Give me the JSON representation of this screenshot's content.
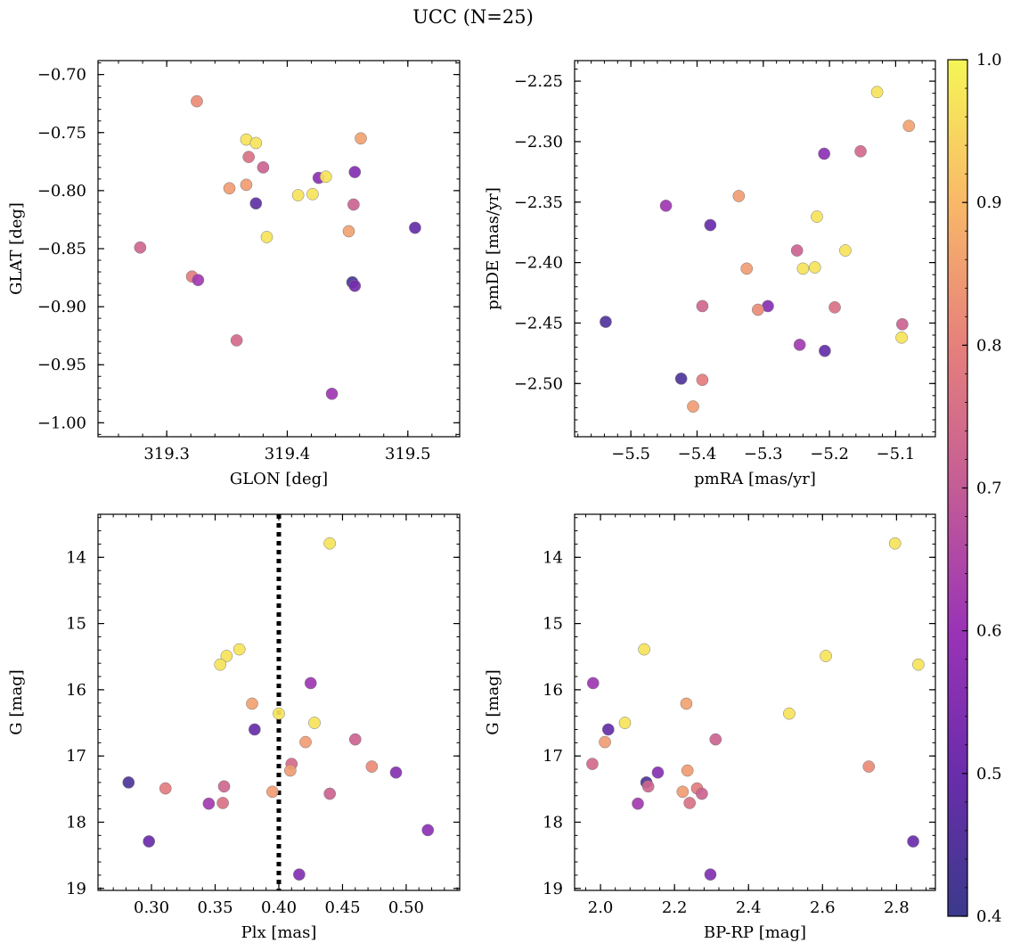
{
  "title": "UCC (N=25)",
  "colorbar": {
    "range": [
      0.4,
      1.0
    ],
    "ticks": [
      0.4,
      0.5,
      0.6,
      0.7,
      0.8,
      0.9,
      1.0
    ],
    "tick_labels": [
      "0.4",
      "0.5",
      "0.6",
      "0.7",
      "0.8",
      "0.9",
      "1.0"
    ],
    "colormap": "plasma"
  },
  "chart_data": [
    {
      "type": "scatter",
      "xlabel": "GLON [deg]",
      "ylabel": "GLAT [deg]",
      "xlim": [
        319.243,
        319.543
      ],
      "ylim": [
        -1.012,
        -0.688
      ],
      "y_inverted": false,
      "xticks": [
        319.3,
        319.4,
        319.5
      ],
      "xtick_labels": [
        "319.3",
        "319.4",
        "319.5"
      ],
      "yticks": [
        -1.0,
        -0.95,
        -0.9,
        -0.85,
        -0.8,
        -0.75,
        -0.7
      ],
      "ytick_labels": [
        "−1.00",
        "−0.95",
        "−0.90",
        "−0.85",
        "−0.80",
        "−0.75",
        "−0.70"
      ],
      "points": [
        {
          "x": 319.325,
          "y": -0.723,
          "c": 0.82
        },
        {
          "x": 319.366,
          "y": -0.756,
          "c": 0.97
        },
        {
          "x": 319.374,
          "y": -0.759,
          "c": 0.97
        },
        {
          "x": 319.461,
          "y": -0.755,
          "c": 0.86
        },
        {
          "x": 319.368,
          "y": -0.771,
          "c": 0.76
        },
        {
          "x": 319.38,
          "y": -0.78,
          "c": 0.72
        },
        {
          "x": 319.426,
          "y": -0.789,
          "c": 0.57
        },
        {
          "x": 319.432,
          "y": -0.788,
          "c": 0.97
        },
        {
          "x": 319.456,
          "y": -0.784,
          "c": 0.55
        },
        {
          "x": 319.352,
          "y": -0.798,
          "c": 0.85
        },
        {
          "x": 319.366,
          "y": -0.795,
          "c": 0.85
        },
        {
          "x": 319.409,
          "y": -0.804,
          "c": 0.97
        },
        {
          "x": 319.421,
          "y": -0.803,
          "c": 0.97
        },
        {
          "x": 319.374,
          "y": -0.811,
          "c": 0.47
        },
        {
          "x": 319.455,
          "y": -0.812,
          "c": 0.72
        },
        {
          "x": 319.383,
          "y": -0.84,
          "c": 0.97
        },
        {
          "x": 319.451,
          "y": -0.835,
          "c": 0.86
        },
        {
          "x": 319.506,
          "y": -0.832,
          "c": 0.49
        },
        {
          "x": 319.278,
          "y": -0.849,
          "c": 0.73
        },
        {
          "x": 319.321,
          "y": -0.874,
          "c": 0.79
        },
        {
          "x": 319.326,
          "y": -0.877,
          "c": 0.62
        },
        {
          "x": 319.454,
          "y": -0.879,
          "c": 0.43
        },
        {
          "x": 319.456,
          "y": -0.882,
          "c": 0.52
        },
        {
          "x": 319.358,
          "y": -0.929,
          "c": 0.74
        },
        {
          "x": 319.437,
          "y": -0.975,
          "c": 0.61
        }
      ]
    },
    {
      "type": "scatter",
      "xlabel": "pmRA [mas/yr]",
      "ylabel": "pmDE [mas/yr]",
      "xlim": [
        -5.585,
        -5.04
      ],
      "ylim": [
        -2.544,
        -2.233
      ],
      "y_inverted": false,
      "xticks": [
        -5.5,
        -5.4,
        -5.3,
        -5.2,
        -5.1
      ],
      "xtick_labels": [
        "−5.5",
        "−5.4",
        "−5.3",
        "−5.2",
        "−5.1"
      ],
      "yticks": [
        -2.5,
        -2.45,
        -2.4,
        -2.35,
        -2.3,
        -2.25
      ],
      "ytick_labels": [
        "−2.50",
        "−2.45",
        "−2.40",
        "−2.35",
        "−2.30",
        "−2.25"
      ],
      "points": [
        {
          "x": -5.128,
          "y": -2.259,
          "c": 0.97
        },
        {
          "x": -5.08,
          "y": -2.287,
          "c": 0.86
        },
        {
          "x": -5.153,
          "y": -2.308,
          "c": 0.74
        },
        {
          "x": -5.208,
          "y": -2.31,
          "c": 0.57
        },
        {
          "x": -5.337,
          "y": -2.345,
          "c": 0.85
        },
        {
          "x": -5.447,
          "y": -2.353,
          "c": 0.61
        },
        {
          "x": -5.219,
          "y": -2.362,
          "c": 0.97
        },
        {
          "x": -5.38,
          "y": -2.369,
          "c": 0.5
        },
        {
          "x": -5.249,
          "y": -2.39,
          "c": 0.72
        },
        {
          "x": -5.176,
          "y": -2.39,
          "c": 0.97
        },
        {
          "x": -5.325,
          "y": -2.405,
          "c": 0.85
        },
        {
          "x": -5.24,
          "y": -2.405,
          "c": 0.97
        },
        {
          "x": -5.222,
          "y": -2.404,
          "c": 0.97
        },
        {
          "x": -5.392,
          "y": -2.436,
          "c": 0.73
        },
        {
          "x": -5.293,
          "y": -2.436,
          "c": 0.56
        },
        {
          "x": -5.308,
          "y": -2.439,
          "c": 0.82
        },
        {
          "x": -5.192,
          "y": -2.437,
          "c": 0.76
        },
        {
          "x": -5.538,
          "y": -2.449,
          "c": 0.45
        },
        {
          "x": -5.09,
          "y": -2.451,
          "c": 0.72
        },
        {
          "x": -5.091,
          "y": -2.462,
          "c": 0.97
        },
        {
          "x": -5.245,
          "y": -2.468,
          "c": 0.62
        },
        {
          "x": -5.207,
          "y": -2.473,
          "c": 0.49
        },
        {
          "x": -5.424,
          "y": -2.496,
          "c": 0.44
        },
        {
          "x": -5.392,
          "y": -2.497,
          "c": 0.79
        },
        {
          "x": -5.406,
          "y": -2.519,
          "c": 0.85
        }
      ]
    },
    {
      "type": "scatter",
      "xlabel": "Plx [mas]",
      "ylabel": "G [mag]",
      "xlim": [
        0.258,
        0.542
      ],
      "ylim": [
        19.03,
        13.35
      ],
      "y_inverted": true,
      "xticks": [
        0.3,
        0.35,
        0.4,
        0.45,
        0.5
      ],
      "xtick_labels": [
        "0.30",
        "0.35",
        "0.40",
        "0.45",
        "0.50"
      ],
      "yticks": [
        14,
        15,
        16,
        17,
        18,
        19
      ],
      "ytick_labels": [
        "14",
        "15",
        "16",
        "17",
        "18",
        "19"
      ],
      "vline": 0.4,
      "points": [
        {
          "x": 0.44,
          "y": 13.79,
          "c": 0.97
        },
        {
          "x": 0.369,
          "y": 15.39,
          "c": 0.97
        },
        {
          "x": 0.359,
          "y": 15.49,
          "c": 0.97
        },
        {
          "x": 0.354,
          "y": 15.62,
          "c": 0.97
        },
        {
          "x": 0.425,
          "y": 15.9,
          "c": 0.61
        },
        {
          "x": 0.379,
          "y": 16.21,
          "c": 0.86
        },
        {
          "x": 0.4,
          "y": 16.36,
          "c": 0.97
        },
        {
          "x": 0.428,
          "y": 16.5,
          "c": 0.97
        },
        {
          "x": 0.381,
          "y": 16.6,
          "c": 0.49
        },
        {
          "x": 0.46,
          "y": 16.75,
          "c": 0.72
        },
        {
          "x": 0.421,
          "y": 16.79,
          "c": 0.85
        },
        {
          "x": 0.41,
          "y": 17.12,
          "c": 0.74
        },
        {
          "x": 0.473,
          "y": 17.16,
          "c": 0.82
        },
        {
          "x": 0.409,
          "y": 17.22,
          "c": 0.85
        },
        {
          "x": 0.492,
          "y": 17.25,
          "c": 0.56
        },
        {
          "x": 0.282,
          "y": 17.4,
          "c": 0.44
        },
        {
          "x": 0.357,
          "y": 17.46,
          "c": 0.73
        },
        {
          "x": 0.311,
          "y": 17.49,
          "c": 0.79
        },
        {
          "x": 0.395,
          "y": 17.54,
          "c": 0.85
        },
        {
          "x": 0.44,
          "y": 17.57,
          "c": 0.72
        },
        {
          "x": 0.345,
          "y": 17.72,
          "c": 0.62
        },
        {
          "x": 0.356,
          "y": 17.71,
          "c": 0.76
        },
        {
          "x": 0.517,
          "y": 18.12,
          "c": 0.57
        },
        {
          "x": 0.298,
          "y": 18.29,
          "c": 0.5
        },
        {
          "x": 0.416,
          "y": 18.79,
          "c": 0.55
        }
      ]
    },
    {
      "type": "scatter",
      "xlabel": "BP-RP [mag]",
      "ylabel": "G [mag]",
      "xlim": [
        1.93,
        2.905
      ],
      "ylim": [
        19.03,
        13.35
      ],
      "y_inverted": true,
      "xticks": [
        2.0,
        2.2,
        2.4,
        2.6,
        2.8
      ],
      "xtick_labels": [
        "2.0",
        "2.2",
        "2.4",
        "2.6",
        "2.8"
      ],
      "yticks": [
        14,
        15,
        16,
        17,
        18,
        19
      ],
      "ytick_labels": [
        "14",
        "15",
        "16",
        "17",
        "18",
        "19"
      ],
      "points": [
        {
          "x": 2.796,
          "y": 13.79,
          "c": 0.97
        },
        {
          "x": 2.118,
          "y": 15.39,
          "c": 0.97
        },
        {
          "x": 2.609,
          "y": 15.49,
          "c": 0.97
        },
        {
          "x": 2.859,
          "y": 15.62,
          "c": 0.97
        },
        {
          "x": 1.98,
          "y": 15.9,
          "c": 0.61
        },
        {
          "x": 2.232,
          "y": 16.21,
          "c": 0.86
        },
        {
          "x": 2.51,
          "y": 16.36,
          "c": 0.97
        },
        {
          "x": 2.066,
          "y": 16.5,
          "c": 0.97
        },
        {
          "x": 2.021,
          "y": 16.6,
          "c": 0.49
        },
        {
          "x": 2.311,
          "y": 16.75,
          "c": 0.72
        },
        {
          "x": 2.012,
          "y": 16.79,
          "c": 0.85
        },
        {
          "x": 1.978,
          "y": 17.12,
          "c": 0.74
        },
        {
          "x": 2.725,
          "y": 17.16,
          "c": 0.82
        },
        {
          "x": 2.235,
          "y": 17.22,
          "c": 0.85
        },
        {
          "x": 2.155,
          "y": 17.25,
          "c": 0.56
        },
        {
          "x": 2.124,
          "y": 17.4,
          "c": 0.44
        },
        {
          "x": 2.129,
          "y": 17.46,
          "c": 0.73
        },
        {
          "x": 2.261,
          "y": 17.49,
          "c": 0.79
        },
        {
          "x": 2.222,
          "y": 17.54,
          "c": 0.85
        },
        {
          "x": 2.274,
          "y": 17.57,
          "c": 0.72
        },
        {
          "x": 2.101,
          "y": 17.72,
          "c": 0.62
        },
        {
          "x": 2.241,
          "y": 17.71,
          "c": 0.76
        },
        {
          "x": 2.845,
          "y": 18.29,
          "c": 0.5
        },
        {
          "x": 2.297,
          "y": 18.79,
          "c": 0.55
        }
      ]
    }
  ]
}
